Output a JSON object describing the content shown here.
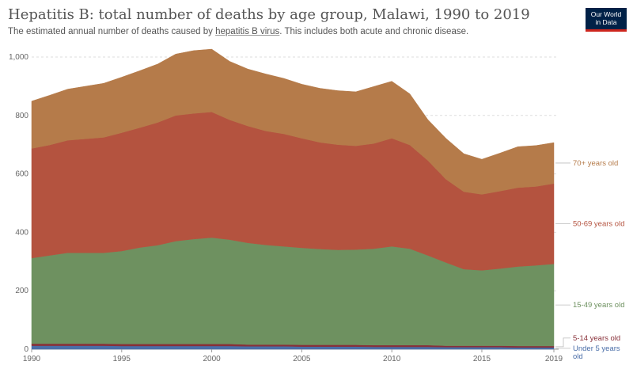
{
  "header": {
    "title": "Hepatitis B: total number of deaths by age group, Malawi, 1990 to 2019",
    "subtitle_before": "The estimated annual number of deaths caused by ",
    "subtitle_link": "hepatitis B virus",
    "subtitle_after": ". This includes both acute and chronic disease.",
    "logo_line1": "Our World",
    "logo_line2": "in Data"
  },
  "colors": {
    "under5": "#4a6ea8",
    "age5_14": "#883039",
    "age15_49": "#6e9160",
    "age50_69": "#b4533f",
    "age70plus": "#b57b4a"
  },
  "chart_data": {
    "type": "area",
    "stacked": true,
    "title": "Hepatitis B: total number of deaths by age group, Malawi, 1990 to 2019",
    "xlabel": "",
    "ylabel": "",
    "xlim": [
      1990,
      2019
    ],
    "ylim": [
      0,
      1000
    ],
    "x_ticks": [
      "1990",
      "1995",
      "2000",
      "2005",
      "2010",
      "2015",
      "2019"
    ],
    "y_ticks": [
      "0",
      "200",
      "400",
      "600",
      "800",
      "1,000"
    ],
    "grid": "horizontal dashed",
    "legend": "right, labels at series ends",
    "x": [
      1990,
      1991,
      1992,
      1993,
      1994,
      1995,
      1996,
      1997,
      1998,
      1999,
      2000,
      2001,
      2002,
      2003,
      2004,
      2005,
      2006,
      2007,
      2008,
      2009,
      2010,
      2011,
      2012,
      2013,
      2014,
      2015,
      2016,
      2017,
      2018,
      2019
    ],
    "series": [
      {
        "name": "Under 5 years old",
        "key": "under5",
        "values": [
          12,
          12,
          12,
          12,
          12,
          11,
          11,
          11,
          11,
          11,
          11,
          11,
          10,
          10,
          10,
          9,
          9,
          9,
          9,
          8,
          8,
          8,
          8,
          7,
          7,
          7,
          7,
          6,
          6,
          6
        ]
      },
      {
        "name": "5-14 years old",
        "key": "age5_14",
        "values": [
          7,
          7,
          7,
          7,
          7,
          7,
          7,
          7,
          7,
          7,
          7,
          7,
          6,
          6,
          6,
          6,
          6,
          6,
          6,
          6,
          6,
          6,
          6,
          5,
          5,
          5,
          5,
          5,
          5,
          5
        ]
      },
      {
        "name": "15-49 years old",
        "key": "age15_49",
        "values": [
          293,
          302,
          311,
          311,
          311,
          318,
          330,
          338,
          352,
          359,
          364,
          357,
          348,
          341,
          336,
          332,
          328,
          325,
          326,
          330,
          338,
          330,
          307,
          285,
          262,
          258,
          264,
          272,
          276,
          281
        ]
      },
      {
        "name": "50-69 years old",
        "key": "age50_69",
        "values": [
          375,
          378,
          385,
          390,
          395,
          405,
          410,
          420,
          430,
          430,
          430,
          410,
          400,
          390,
          385,
          375,
          365,
          360,
          355,
          360,
          370,
          355,
          325,
          285,
          265,
          260,
          265,
          270,
          270,
          275
        ]
      },
      {
        "name": "70+ years old",
        "key": "age70plus",
        "values": [
          162,
          170,
          175,
          180,
          185,
          190,
          195,
          200,
          210,
          215,
          215,
          200,
          195,
          195,
          190,
          185,
          185,
          185,
          185,
          195,
          195,
          175,
          140,
          140,
          130,
          120,
          130,
          140,
          140,
          140
        ]
      }
    ]
  }
}
